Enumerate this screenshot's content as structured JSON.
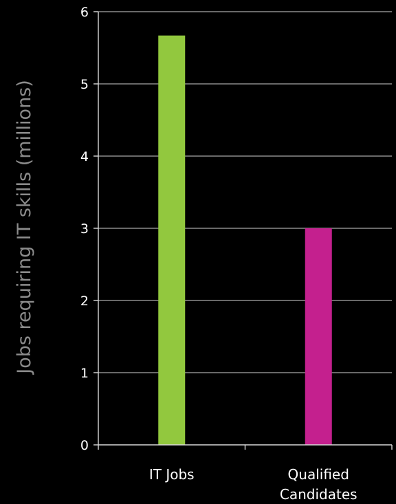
{
  "chart_data": {
    "type": "bar",
    "categories": [
      "IT Jobs",
      "Qualified Candidates"
    ],
    "category_lines": [
      [
        "IT Jobs"
      ],
      [
        "Qualified",
        "Candidates"
      ]
    ],
    "values": [
      5.67,
      3.0
    ],
    "bar_colors": [
      "#92c83e",
      "#c4208e"
    ],
    "title": "",
    "xlabel": "",
    "ylabel": "Jobs requiring IT skills (millions)",
    "ylim": [
      0,
      6
    ],
    "yticks": [
      0,
      1,
      2,
      3,
      4,
      5,
      6
    ],
    "grid": true,
    "legend": "none"
  },
  "colors": {
    "background": "#000000",
    "axis": "#d9d9d9",
    "grid": "#8c8c8c",
    "text": "#ffffff",
    "axis_title": "#8c8c8c"
  }
}
